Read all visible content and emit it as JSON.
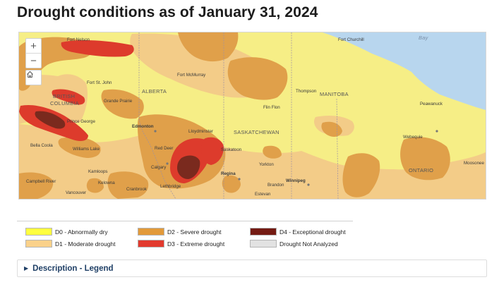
{
  "title": "Drought conditions as of January 31, 2024",
  "map": {
    "controls": {
      "zoom_in": "+",
      "zoom_out": "−"
    },
    "provinces": [
      "BRITISH",
      "COLUMBIA",
      "ALBERTA",
      "SASKATCHEWAN",
      "MANITOBA",
      "ONTARIO"
    ],
    "water_label": "Bay",
    "cities": [
      "Fort Nelson",
      "Fort St. John",
      "Fort McMurray",
      "Fort Churchill",
      "Grande Prairie",
      "Thompson",
      "Flin Flon",
      "Peawanuck",
      "Prince George",
      "Edmonton",
      "Lloydminster",
      "Webequie",
      "Bella Coola",
      "Williams Lake",
      "Red Deer",
      "Saskatoon",
      "Kamloops",
      "Calgary",
      "Yorkton",
      "Moosonee",
      "Campbell River",
      "Kelowna",
      "Lethbridge",
      "Regina",
      "Brandon",
      "Winnipeg",
      "Vancouver",
      "Cranbrook",
      "Estevan"
    ]
  },
  "legend": {
    "items": [
      {
        "label": "D0 - Abnormally dry",
        "color": "#ffff3f"
      },
      {
        "label": "D1 - Moderate drought",
        "color": "#fad18a"
      },
      {
        "label": "D2 - Severe drought",
        "color": "#e29a3a"
      },
      {
        "label": "D3 - Extreme drought",
        "color": "#e23a2e"
      },
      {
        "label": "D4 - Exceptional drought",
        "color": "#741b13"
      },
      {
        "label": "Drought Not Analyzed",
        "color": "#e2e2e2"
      }
    ]
  },
  "description_toggle": {
    "arrow": "▶",
    "label": "Description - Legend"
  }
}
